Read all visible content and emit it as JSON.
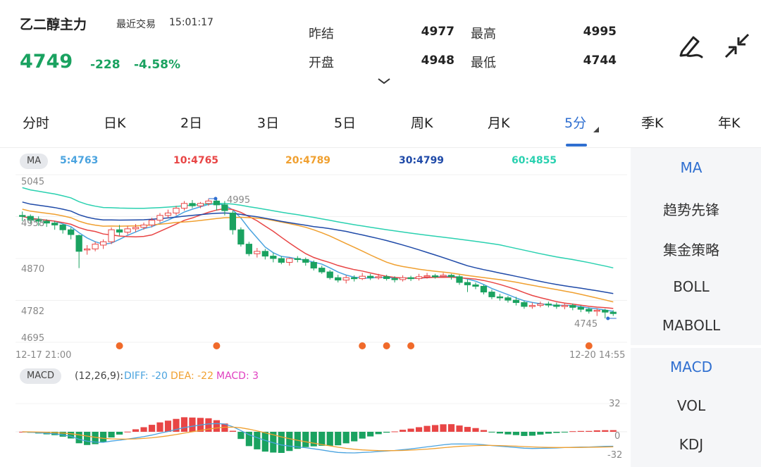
{
  "header": {
    "name": "乙二醇主力",
    "trade_label": "最近交易",
    "trade_time": "15:01:17",
    "price": "4749",
    "change": "-228",
    "change_pct": "-4.58%"
  },
  "quote": {
    "prev_settle_label": "昨结",
    "prev_settle": "4977",
    "high_label": "最高",
    "high": "4995",
    "open_label": "开盘",
    "open": "4948",
    "low_label": "最低",
    "low": "4744"
  },
  "icons": [
    "edit-icon",
    "collapse-icon",
    "chevron-down-icon"
  ],
  "tabs": [
    {
      "label": "分时"
    },
    {
      "label": "日K"
    },
    {
      "label": "2日"
    },
    {
      "label": "3日"
    },
    {
      "label": "5日"
    },
    {
      "label": "周K"
    },
    {
      "label": "月K"
    },
    {
      "label": "5分"
    },
    {
      "label": "季K"
    },
    {
      "label": "年K"
    }
  ],
  "active_tab": "5分",
  "ma_bar": {
    "pill": "MA",
    "ma5": "5:4763",
    "ma10": "10:4765",
    "ma20": "20:4789",
    "ma30": "30:4799",
    "ma60": "60:4855"
  },
  "main_chart": {
    "y_labels": [
      "5045",
      "4958",
      "4870",
      "4782",
      "4695"
    ],
    "start_time": "12-17 21:00",
    "end_time": "12-20 14:55",
    "high_marker": "4995",
    "low_marker": "4745"
  },
  "macd_bar": {
    "pill": "MACD",
    "params": "(12,26,9):",
    "diff": "DIFF: -20",
    "dea": "DEA: -22",
    "macd": "MACD: 3",
    "y_top": "32",
    "y_mid": "0",
    "y_bottom": "-32"
  },
  "side_main": [
    {
      "label": "MA",
      "active": true
    },
    {
      "label": "趋势先锋"
    },
    {
      "label": "集金策略"
    },
    {
      "label": "BOLL"
    },
    {
      "label": "MABOLL"
    }
  ],
  "side_sub": [
    {
      "label": "MACD",
      "active": true
    },
    {
      "label": "VOL"
    },
    {
      "label": "KDJ"
    }
  ],
  "colors": {
    "down": "#1aa260",
    "up": "#e84545",
    "accent": "#2f6fd0",
    "ma5": "#4aa3df",
    "ma10": "#e84545",
    "ma20": "#f0a030",
    "ma30": "#1f4aa8",
    "ma60": "#2ad1b0",
    "macd_pink": "#e040c0",
    "signal_dot": "#f06a2a"
  },
  "chart_data": [
    {
      "type": "candlestick",
      "title": "",
      "ylim": [
        4695,
        5045
      ],
      "high": 4995,
      "low": 4745,
      "series": [
        {
          "name": "MA5",
          "last": 4763
        },
        {
          "name": "MA10",
          "last": 4765
        },
        {
          "name": "MA20",
          "last": 4789
        },
        {
          "name": "MA30",
          "last": 4799
        },
        {
          "name": "MA60",
          "last": 4855
        }
      ],
      "candles": [
        [
          4960,
          4958,
          4968,
          4948
        ],
        [
          4958,
          4950,
          4962,
          4942
        ],
        [
          4952,
          4948,
          4958,
          4938
        ],
        [
          4948,
          4944,
          4952,
          4936
        ],
        [
          4944,
          4940,
          4948,
          4930
        ],
        [
          4940,
          4930,
          4942,
          4922
        ],
        [
          4930,
          4920,
          4935,
          4910
        ],
        [
          4918,
          4885,
          4920,
          4850
        ],
        [
          4888,
          4890,
          4898,
          4878
        ],
        [
          4890,
          4900,
          4905,
          4885
        ],
        [
          4898,
          4905,
          4910,
          4890
        ],
        [
          4905,
          4930,
          4935,
          4900
        ],
        [
          4930,
          4925,
          4940,
          4918
        ],
        [
          4925,
          4932,
          4938,
          4920
        ],
        [
          4932,
          4935,
          4942,
          4925
        ],
        [
          4935,
          4940,
          4945,
          4930
        ],
        [
          4940,
          4950,
          4955,
          4935
        ],
        [
          4950,
          4960,
          4965,
          4945
        ],
        [
          4960,
          4965,
          4972,
          4955
        ],
        [
          4965,
          4975,
          4980,
          4960
        ],
        [
          4975,
          4985,
          4990,
          4970
        ],
        [
          4985,
          4980,
          4992,
          4975
        ],
        [
          4980,
          4985,
          4988,
          4975
        ],
        [
          4985,
          4990,
          4995,
          4980
        ],
        [
          4990,
          4982,
          4995,
          4970
        ],
        [
          4982,
          4970,
          4990,
          4960
        ],
        [
          4965,
          4930,
          4970,
          4920
        ],
        [
          4930,
          4900,
          4935,
          4895
        ],
        [
          4900,
          4880,
          4905,
          4875
        ],
        [
          4880,
          4885,
          4892,
          4872
        ],
        [
          4885,
          4875,
          4890,
          4868
        ],
        [
          4875,
          4870,
          4882,
          4862
        ],
        [
          4870,
          4862,
          4875,
          4858
        ],
        [
          4862,
          4870,
          4872,
          4855
        ],
        [
          4870,
          4868,
          4875,
          4862
        ],
        [
          4868,
          4862,
          4872,
          4855
        ],
        [
          4862,
          4850,
          4866,
          4845
        ],
        [
          4850,
          4842,
          4855,
          4838
        ],
        [
          4842,
          4830,
          4846,
          4826
        ],
        [
          4830,
          4825,
          4836,
          4820
        ],
        [
          4825,
          4830,
          4835,
          4818
        ],
        [
          4830,
          4828,
          4835,
          4822
        ],
        [
          4828,
          4833,
          4840,
          4825
        ],
        [
          4833,
          4830,
          4838,
          4825
        ],
        [
          4830,
          4832,
          4838,
          4826
        ],
        [
          4832,
          4828,
          4836,
          4824
        ],
        [
          4828,
          4826,
          4833,
          4820
        ],
        [
          4826,
          4830,
          4835,
          4822
        ],
        [
          4830,
          4828,
          4834,
          4823
        ],
        [
          4828,
          4832,
          4838,
          4824
        ],
        [
          4832,
          4834,
          4840,
          4828
        ],
        [
          4834,
          4833,
          4838,
          4828
        ],
        [
          4833,
          4835,
          4840,
          4830
        ],
        [
          4835,
          4832,
          4838,
          4826
        ],
        [
          4832,
          4820,
          4836,
          4815
        ],
        [
          4820,
          4815,
          4826,
          4800
        ],
        [
          4815,
          4812,
          4820,
          4806
        ],
        [
          4812,
          4800,
          4815,
          4795
        ],
        [
          4800,
          4790,
          4805,
          4785
        ],
        [
          4790,
          4788,
          4796,
          4782
        ],
        [
          4788,
          4783,
          4792,
          4778
        ],
        [
          4783,
          4778,
          4790,
          4772
        ],
        [
          4778,
          4770,
          4782,
          4765
        ],
        [
          4770,
          4772,
          4778,
          4765
        ],
        [
          4772,
          4775,
          4780,
          4768
        ],
        [
          4775,
          4773,
          4780,
          4768
        ],
        [
          4773,
          4770,
          4778,
          4765
        ],
        [
          4770,
          4772,
          4776,
          4764
        ],
        [
          4772,
          4768,
          4776,
          4762
        ],
        [
          4768,
          4764,
          4772,
          4758
        ],
        [
          4764,
          4760,
          4768,
          4755
        ],
        [
          4760,
          4762,
          4766,
          4750
        ],
        [
          4762,
          4758,
          4765,
          4745
        ],
        [
          4758,
          4755,
          4762,
          4750
        ]
      ]
    },
    {
      "type": "bar",
      "title": "MACD",
      "ylim": [
        -32,
        32
      ],
      "params": [
        12,
        26,
        9
      ],
      "diff": -20,
      "dea": -22,
      "macd": 3
    }
  ]
}
